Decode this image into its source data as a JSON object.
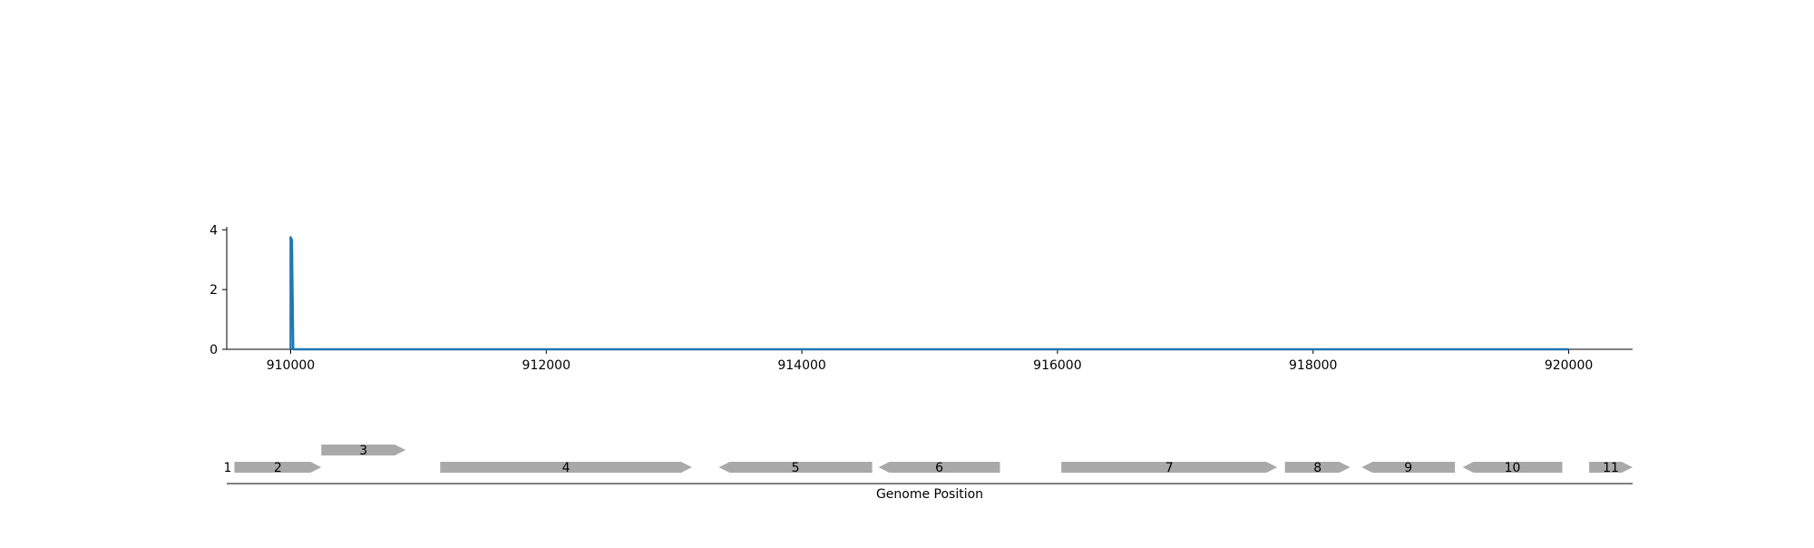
{
  "chart_data": {
    "type": "line",
    "xlabel": "Genome Position",
    "xlim": [
      909500,
      920500
    ],
    "ylim": [
      0,
      4.1
    ],
    "xticks": [
      910000,
      912000,
      914000,
      916000,
      918000,
      920000
    ],
    "yticks": [
      0,
      2,
      4
    ],
    "grid": false,
    "series": [
      {
        "color": "#1f77b4",
        "x": [
          910000,
          910000,
          910010,
          910020,
          910030,
          920000
        ],
        "y": [
          0,
          3.75,
          3.65,
          0,
          0,
          0
        ]
      }
    ],
    "genes": {
      "color": "#a9a9a9",
      "items": [
        {
          "label": "1",
          "start": 909500,
          "end": 909500,
          "strand": "+",
          "row": 0
        },
        {
          "label": "2",
          "start": 909560,
          "end": 910240,
          "strand": "+",
          "row": 0
        },
        {
          "label": "3",
          "start": 910240,
          "end": 910900,
          "strand": "+",
          "row": 1
        },
        {
          "label": "4",
          "start": 911170,
          "end": 913140,
          "strand": "+",
          "row": 0
        },
        {
          "label": "5",
          "start": 913350,
          "end": 914550,
          "strand": "-",
          "row": 0
        },
        {
          "label": "6",
          "start": 914600,
          "end": 915550,
          "strand": "-",
          "row": 0
        },
        {
          "label": "7",
          "start": 916030,
          "end": 917720,
          "strand": "+",
          "row": 0
        },
        {
          "label": "8",
          "start": 917780,
          "end": 918290,
          "strand": "+",
          "row": 0
        },
        {
          "label": "9",
          "start": 918380,
          "end": 919110,
          "strand": "-",
          "row": 0
        },
        {
          "label": "10",
          "start": 919170,
          "end": 919950,
          "strand": "-",
          "row": 0
        },
        {
          "label": "11",
          "start": 920160,
          "end": 920500,
          "strand": "+",
          "row": 0
        }
      ]
    }
  }
}
